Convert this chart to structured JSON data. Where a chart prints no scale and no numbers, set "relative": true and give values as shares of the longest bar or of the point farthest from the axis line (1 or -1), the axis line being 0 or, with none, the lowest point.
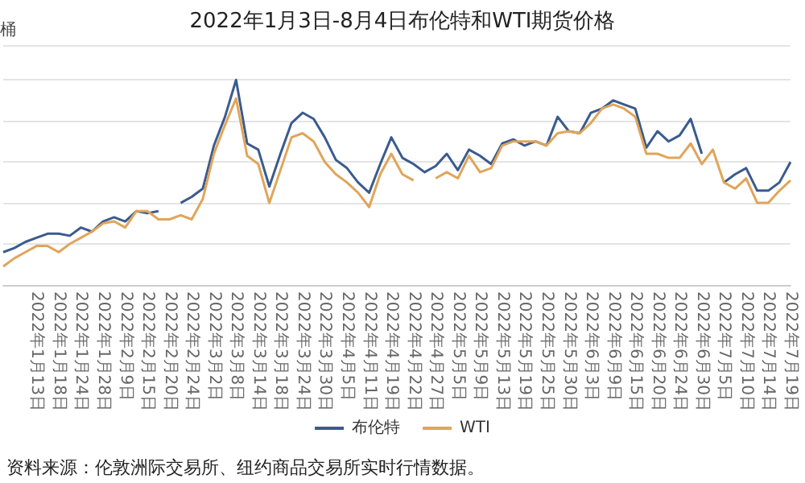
{
  "chart_data": {
    "type": "line",
    "title": "2022年1月3日-8月4日布伦特和WTI期货价格",
    "ylabel": "桶",
    "relative": true,
    "grid": "y",
    "legend": "bottom",
    "marker": "none",
    "line_style": "solid",
    "annotations": [
      "资料来源：伦敦洲际交易所、纽约商品交易所实时行情数据。"
    ],
    "categories": [
      null,
      null,
      null,
      "2022年1月13日",
      null,
      "2022年1月18日",
      null,
      "2022年1月24日",
      null,
      "2022年1月28日",
      null,
      "2022年2月9日",
      null,
      "2022年2月15日",
      null,
      "2022年2月20日",
      null,
      "2022年2月24日",
      null,
      "2022年3月2日",
      null,
      "2022年3月8日",
      null,
      "2022年3月14日",
      null,
      "2022年3月18日",
      null,
      "2022年3月24日",
      null,
      "2022年3月30日",
      null,
      "2022年4月5日",
      null,
      "2022年4月11日",
      null,
      "2022年4月19日",
      null,
      "2022年4月22日",
      null,
      "2022年4月27日",
      null,
      "2022年5月5日",
      null,
      "2022年5月9日",
      null,
      "2022年5月13日",
      null,
      "2022年5月19日",
      null,
      "2022年5月25日",
      null,
      "2022年5月30日",
      null,
      "2022年6月3日",
      null,
      "2022年6月9日",
      null,
      "2022年6月15日",
      null,
      "2022年6月20日",
      null,
      "2022年6月24日",
      null,
      "2022年6月30日",
      null,
      "2022年7月5日",
      null,
      "2022年7月10日",
      null,
      "2022年7月14日",
      null,
      "2022年7月19日"
    ],
    "series": [
      {
        "name": "布伦特",
        "color": "#3b5b8e",
        "values": [
          0.16,
          0.18,
          0.21,
          0.23,
          0.25,
          0.25,
          0.24,
          0.28,
          0.26,
          0.31,
          0.33,
          0.31,
          0.36,
          0.35,
          0.36,
          null,
          0.4,
          0.43,
          0.47,
          0.68,
          0.82,
          1,
          0.69,
          0.66,
          0.48,
          0.64,
          0.79,
          0.84,
          0.81,
          0.72,
          0.61,
          0.57,
          0.5,
          0.45,
          0.59,
          0.72,
          0.62,
          0.59,
          0.55,
          0.58,
          0.64,
          0.56,
          0.66,
          0.63,
          0.59,
          0.69,
          0.71,
          0.68,
          0.7,
          0.68,
          0.82,
          0.75,
          0.74,
          0.84,
          0.86,
          0.9,
          0.88,
          0.86,
          0.67,
          0.75,
          0.7,
          0.73,
          0.81,
          0.64,
          null,
          0.5,
          0.54,
          0.57,
          0.46,
          0.46,
          0.5,
          0.6
        ]
      },
      {
        "name": "WTI",
        "color": "#e0a55a",
        "values": [
          0.09,
          0.13,
          0.16,
          0.19,
          0.19,
          0.16,
          0.2,
          0.23,
          0.26,
          0.3,
          0.31,
          0.28,
          0.36,
          0.36,
          0.32,
          0.32,
          0.34,
          0.32,
          0.42,
          0.64,
          0.78,
          0.91,
          0.63,
          0.59,
          0.4,
          0.56,
          0.72,
          0.74,
          0.7,
          0.6,
          0.54,
          0.5,
          0.45,
          0.38,
          0.54,
          0.64,
          0.54,
          0.51,
          null,
          0.52,
          0.55,
          0.52,
          0.63,
          0.55,
          0.57,
          0.68,
          0.7,
          0.7,
          0.7,
          0.68,
          0.74,
          0.75,
          0.74,
          0.79,
          0.86,
          0.88,
          0.86,
          0.82,
          0.64,
          0.64,
          0.62,
          0.62,
          0.69,
          0.59,
          0.66,
          0.5,
          0.47,
          0.52,
          0.4,
          0.4,
          0.46,
          0.51
        ]
      }
    ]
  }
}
